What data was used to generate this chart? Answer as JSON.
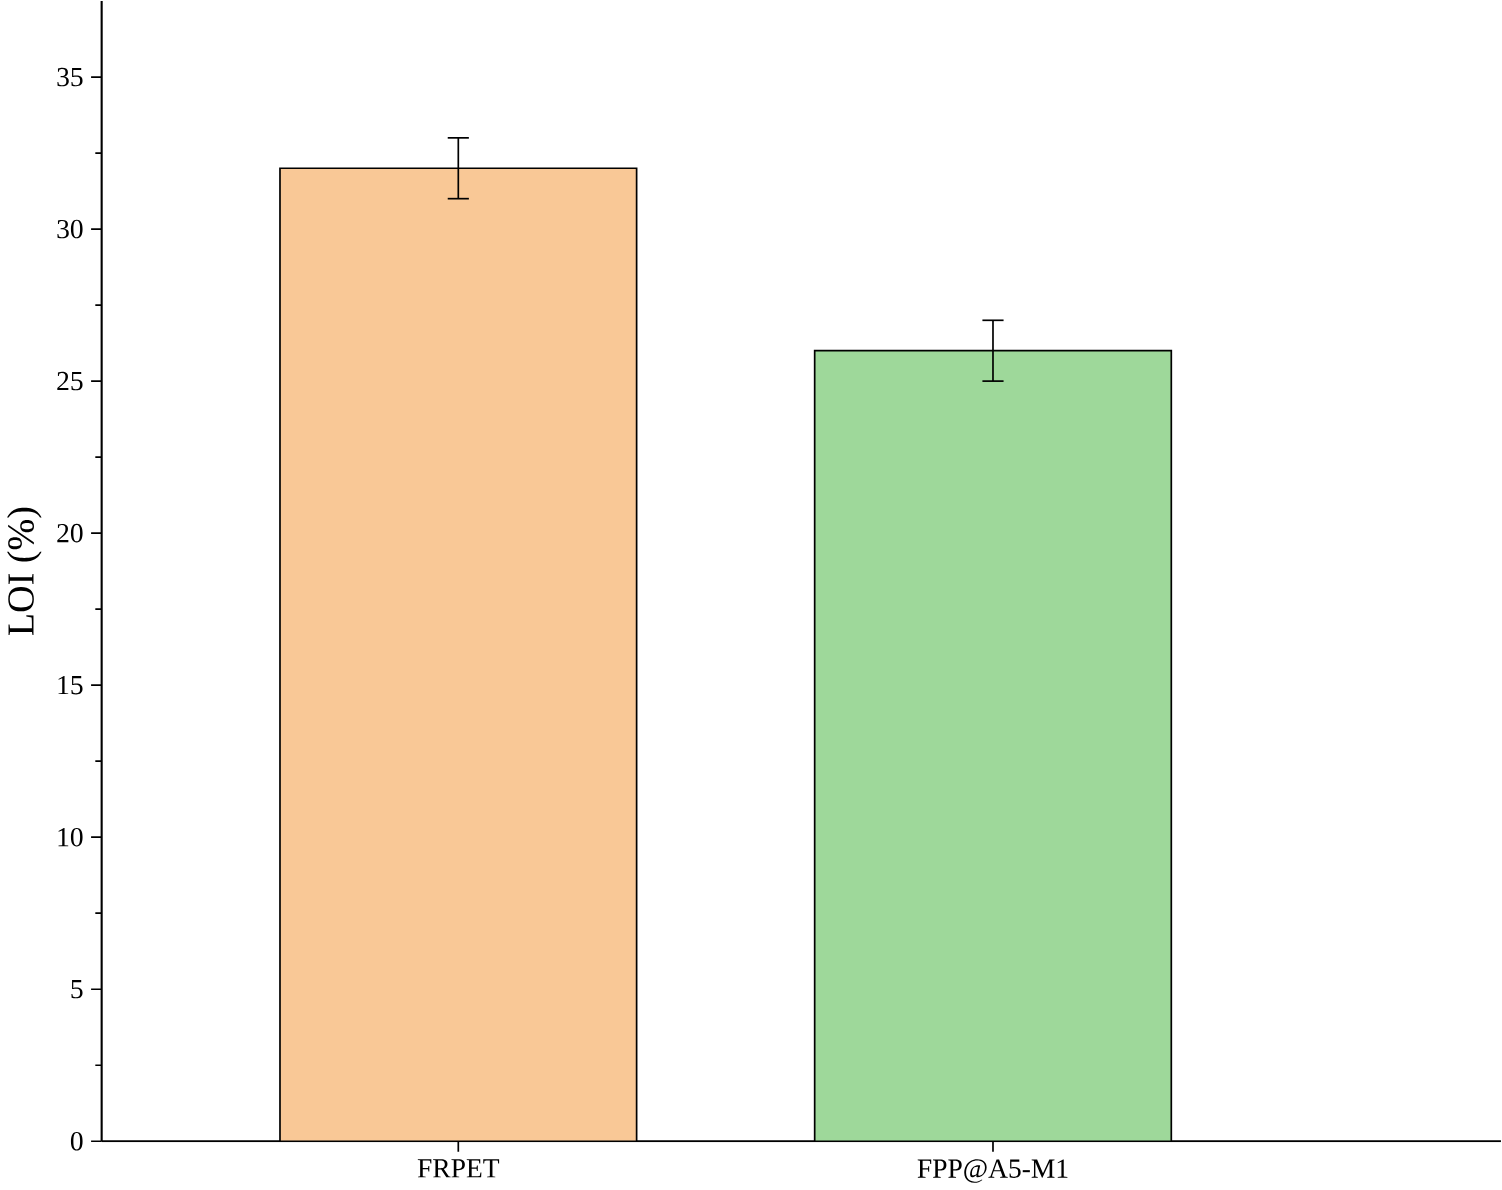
{
  "chart_data": {
    "type": "bar",
    "ylabel": "LOI (%)",
    "categories": [
      "FRPET",
      "FPP@A5-M1"
    ],
    "values": [
      32,
      26
    ],
    "errors": [
      1,
      1
    ],
    "colors": [
      "#f9c896",
      "#9ed89a"
    ],
    "ylim": [
      0,
      37.5
    ],
    "yticks": [
      0,
      5,
      10,
      15,
      20,
      25,
      30,
      35
    ],
    "grid": false
  }
}
